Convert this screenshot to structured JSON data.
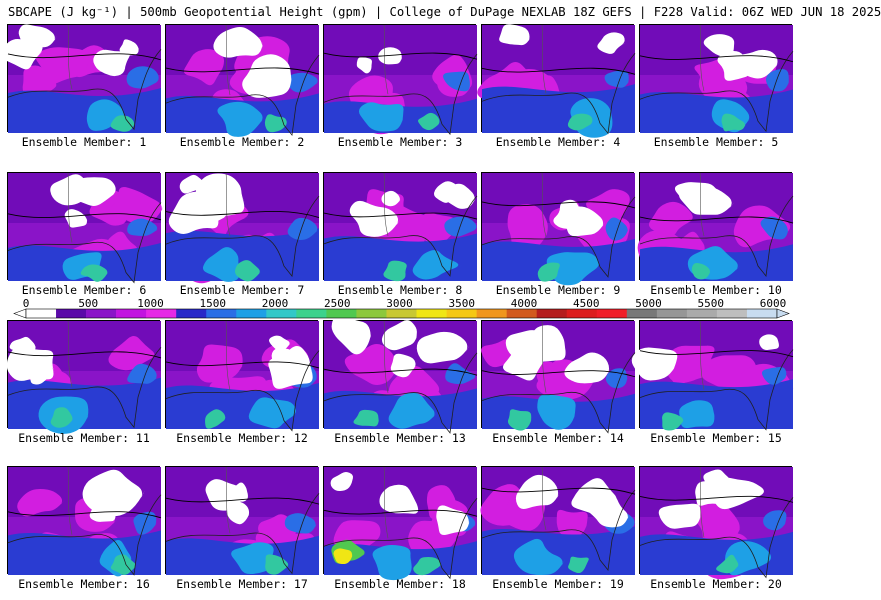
{
  "header": {
    "title": "SBCAPE (J kg⁻¹) | 500mb Geopotential Height (gpm) | College of DuPage NEXLAB 18Z GEFS | F228 Valid: 06Z WED JUN 18 2025"
  },
  "colorbar": {
    "tick_labels": [
      "0",
      "500",
      "1000",
      "1500",
      "2000",
      "2500",
      "3000",
      "3500",
      "4000",
      "4500",
      "5000",
      "5500",
      "6000"
    ],
    "colors": [
      "#ffffff",
      "#5a0aa8",
      "#8a14c8",
      "#c214e0",
      "#e628e6",
      "#2828c8",
      "#2a6ee6",
      "#1ea0e6",
      "#32c8c8",
      "#3cd28c",
      "#50c850",
      "#8cc83c",
      "#c8c832",
      "#f0e614",
      "#f5c814",
      "#f0961e",
      "#d25a1e",
      "#b41e1e",
      "#dc1e1e",
      "#f01e28",
      "#787878",
      "#969696",
      "#aaaaaa",
      "#bebebe",
      "#c8dcf0"
    ]
  },
  "panels": [
    {
      "label": "Ensemble Member: 1"
    },
    {
      "label": "Ensemble Member: 2"
    },
    {
      "label": "Ensemble Member: 3"
    },
    {
      "label": "Ensemble Member: 4"
    },
    {
      "label": "Ensemble Member: 5"
    },
    {
      "label": "Ensemble Member: 6"
    },
    {
      "label": "Ensemble Member: 7"
    },
    {
      "label": "Ensemble Member: 8"
    },
    {
      "label": "Ensemble Member: 9"
    },
    {
      "label": "Ensemble Member: 10"
    },
    {
      "label": "Ensemble Member: 11"
    },
    {
      "label": "Ensemble Member: 12"
    },
    {
      "label": "Ensemble Member: 13"
    },
    {
      "label": "Ensemble Member: 14"
    },
    {
      "label": "Ensemble Member: 15"
    },
    {
      "label": "Ensemble Member: 16"
    },
    {
      "label": "Ensemble Member: 17"
    },
    {
      "label": "Ensemble Member: 18"
    },
    {
      "label": "Ensemble Member: 19"
    },
    {
      "label": "Ensemble Member: 20"
    }
  ]
}
